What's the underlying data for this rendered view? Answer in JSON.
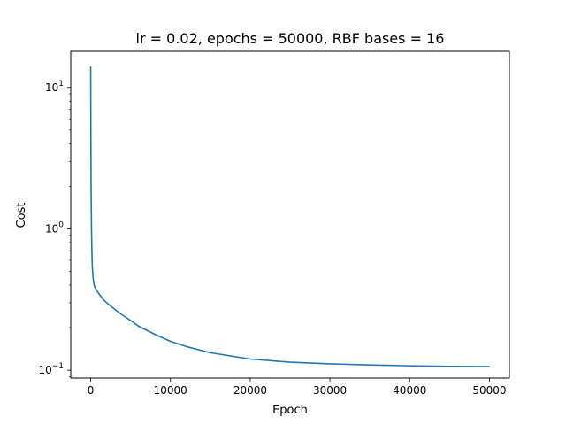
{
  "chart_data": {
    "type": "line",
    "title": "lr = 0.02, epochs = 50000, RBF bases = 16",
    "xlabel": "Epoch",
    "ylabel": "Cost",
    "xlim": [
      -2500,
      52500
    ],
    "ylim": [
      0.088,
      18.0
    ],
    "yscale": "log",
    "grid": false,
    "x_ticks": [
      0,
      10000,
      20000,
      30000,
      40000,
      50000
    ],
    "x_tick_labels": [
      "0",
      "10000",
      "20000",
      "30000",
      "40000",
      "50000"
    ],
    "y_ticks": [
      0.1,
      1,
      10
    ],
    "y_tick_labels": [
      {
        "base": "10",
        "exp": "−1"
      },
      {
        "base": "10",
        "exp": "0"
      },
      {
        "base": "10",
        "exp": "1"
      }
    ],
    "series": [
      {
        "color": "#1f77b4",
        "x": [
          0,
          20,
          50,
          100,
          150,
          200,
          300,
          400,
          500,
          700,
          1000,
          1500,
          2000,
          3000,
          4000,
          5000,
          6000,
          8000,
          10000,
          12000,
          15000,
          20000,
          25000,
          30000,
          35000,
          40000,
          45000,
          50000
        ],
        "y": [
          14.0,
          5.0,
          2.0,
          1.0,
          0.7,
          0.55,
          0.45,
          0.41,
          0.39,
          0.37,
          0.35,
          0.32,
          0.3,
          0.27,
          0.245,
          0.225,
          0.205,
          0.18,
          0.16,
          0.147,
          0.133,
          0.12,
          0.114,
          0.111,
          0.109,
          0.1075,
          0.1065,
          0.106
        ]
      }
    ]
  }
}
